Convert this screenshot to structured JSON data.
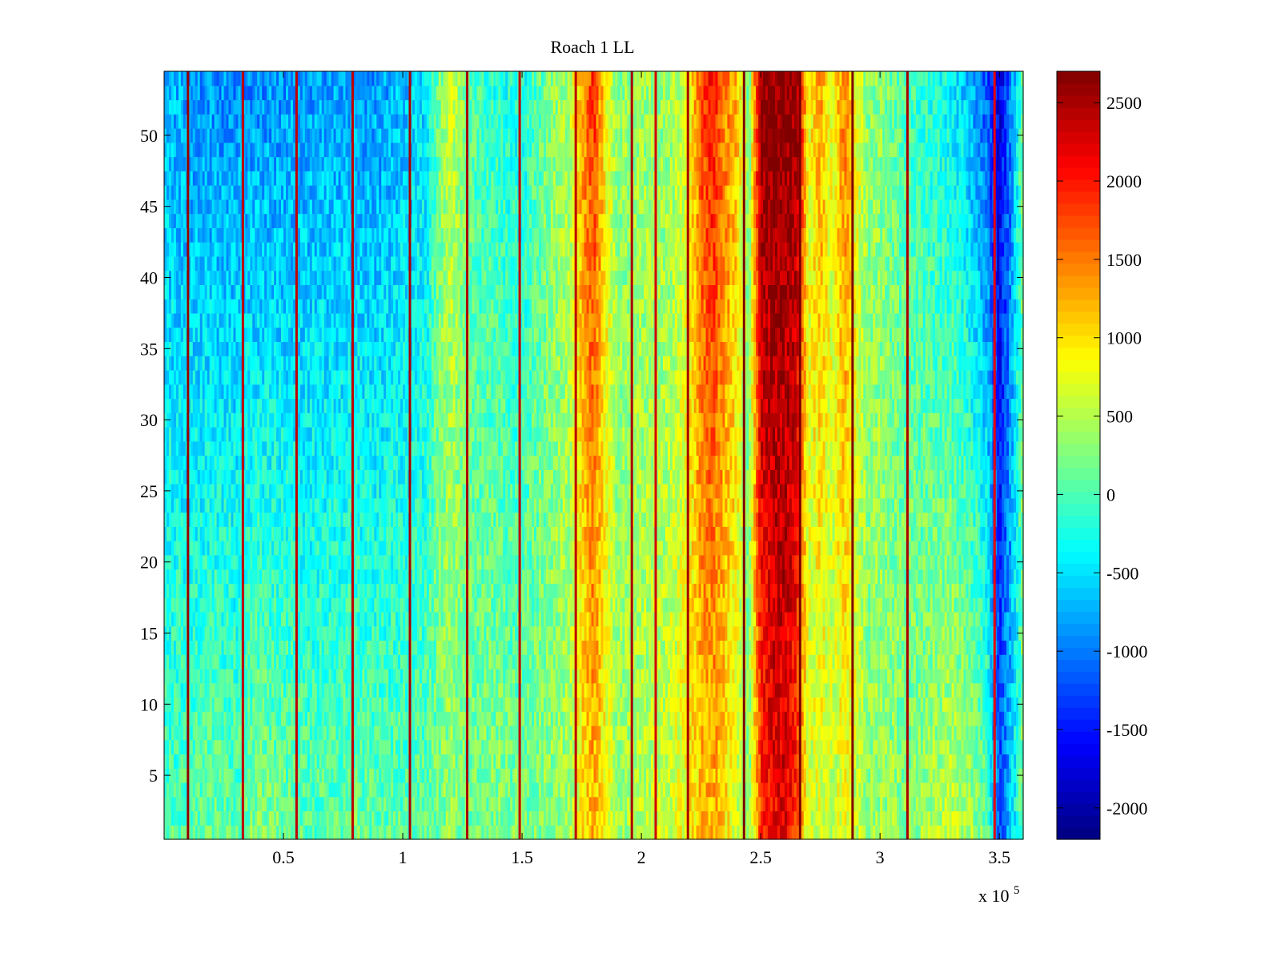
{
  "chart_data": {
    "type": "heatmap",
    "title": "Roach 1 LL",
    "xlabel": "",
    "ylabel": "",
    "x_exponent_label": "x 10",
    "x_exponent_power": "5",
    "xlim": [
      0,
      360000
    ],
    "ylim": [
      0.5,
      54.5
    ],
    "x_ticks": [
      50000,
      100000,
      150000,
      200000,
      250000,
      300000,
      350000
    ],
    "x_tick_labels": [
      "0.5",
      "1",
      "1.5",
      "2",
      "2.5",
      "3",
      "3.5"
    ],
    "y_ticks": [
      5,
      10,
      15,
      20,
      25,
      30,
      35,
      40,
      45,
      50
    ],
    "y_tick_labels": [
      "5",
      "10",
      "15",
      "20",
      "25",
      "30",
      "35",
      "40",
      "45",
      "50"
    ],
    "rows": 54,
    "colormap": "jet",
    "clim": [
      -2200,
      2700
    ],
    "colorbar": {
      "ticks": [
        2500,
        2000,
        1500,
        1000,
        500,
        0,
        -500,
        -1000,
        -1500,
        -2000
      ],
      "tick_labels": [
        "2500",
        "2000",
        "1500",
        "1000",
        "500",
        "0",
        "-500",
        "-1000",
        "-1500",
        "-2000"
      ]
    },
    "value_profile_x": [
      0,
      10000,
      20000,
      30000,
      40000,
      50000,
      60000,
      70000,
      80000,
      90000,
      100000,
      110000,
      115000,
      120000,
      125000,
      130000,
      140000,
      150000,
      160000,
      170000,
      175000,
      180000,
      185000,
      190000,
      200000,
      210000,
      215000,
      220000,
      225000,
      230000,
      235000,
      240000,
      245000,
      250000,
      255000,
      260000,
      265000,
      270000,
      275000,
      280000,
      285000,
      290000,
      295000,
      300000,
      310000,
      320000,
      330000,
      335000,
      340000,
      345000,
      350000,
      355000,
      360000
    ],
    "value_profile_top": [
      -700,
      -850,
      -900,
      -900,
      -900,
      -900,
      -850,
      -800,
      -850,
      -850,
      -700,
      -500,
      200,
      600,
      300,
      0,
      -200,
      -300,
      200,
      500,
      1300,
      1900,
      900,
      300,
      400,
      300,
      500,
      700,
      1800,
      2000,
      1500,
      1200,
      200,
      2700,
      2700,
      2700,
      2700,
      800,
      1300,
      800,
      1500,
      800,
      300,
      300,
      0,
      -200,
      -400,
      -600,
      -900,
      -1200,
      -1800,
      -1000,
      300
    ],
    "value_profile_bottom": [
      0,
      50,
      200,
      100,
      300,
      200,
      100,
      100,
      200,
      100,
      100,
      100,
      200,
      300,
      200,
      200,
      300,
      200,
      300,
      400,
      900,
      1200,
      800,
      400,
      500,
      600,
      700,
      900,
      1100,
      1200,
      1000,
      600,
      200,
      1800,
      2100,
      2200,
      1800,
      600,
      700,
      500,
      800,
      600,
      300,
      400,
      300,
      400,
      600,
      500,
      400,
      100,
      -1200,
      -600,
      200
    ],
    "stripes": [
      {
        "x": 10000,
        "value": 2600
      },
      {
        "x": 33000,
        "value": 2400
      },
      {
        "x": 55500,
        "value": 2400
      },
      {
        "x": 79000,
        "value": 2400
      },
      {
        "x": 103000,
        "value": 2500
      },
      {
        "x": 127000,
        "value": 2500
      },
      {
        "x": 149000,
        "value": 2400
      },
      {
        "x": 172500,
        "value": 2400
      },
      {
        "x": 196000,
        "value": 2500
      },
      {
        "x": 206000,
        "value": 2300
      },
      {
        "x": 219500,
        "value": 2500
      },
      {
        "x": 243000,
        "value": 2700
      },
      {
        "x": 266500,
        "value": 2700
      },
      {
        "x": 288500,
        "value": 2700
      },
      {
        "x": 311500,
        "value": 2500
      },
      {
        "x": 348000,
        "value": 2200
      }
    ]
  }
}
